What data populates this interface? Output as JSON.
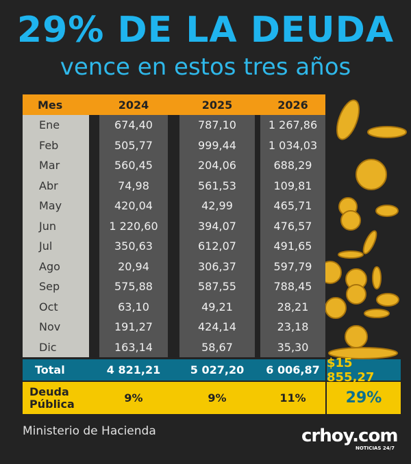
{
  "header": {
    "title": "29% DE LA DEUDA",
    "subtitle": "vence en estos tres años"
  },
  "table": {
    "columns": [
      "Mes",
      "2024",
      "2025",
      "2026"
    ],
    "rows": [
      [
        "Ene",
        "674,40",
        "787,10",
        "1 267,86"
      ],
      [
        "Feb",
        "505,77",
        "999,44",
        "1 034,03"
      ],
      [
        "Mar",
        "560,45",
        "204,06",
        "688,29"
      ],
      [
        "Abr",
        "74,98",
        "561,53",
        "109,81"
      ],
      [
        "May",
        "420,04",
        "42,99",
        "465,71"
      ],
      [
        "Jun",
        "1 220,60",
        "394,07",
        "476,57"
      ],
      [
        "Jul",
        "350,63",
        "612,07",
        "491,65"
      ],
      [
        "Ago",
        "20,94",
        "306,37",
        "597,79"
      ],
      [
        "Sep",
        "575,88",
        "587,55",
        "788,45"
      ],
      [
        "Oct",
        "63,10",
        "49,21",
        "28,21"
      ],
      [
        "Nov",
        "191,27",
        "424,14",
        "23,18"
      ],
      [
        "Dic",
        "163,14",
        "58,67",
        "35,30"
      ]
    ],
    "total": [
      "Total",
      "4 821,21",
      "5 027,20",
      "6 006,87"
    ],
    "grand_total": "$15 855,27",
    "debt_share": [
      "Deuda Pública",
      "9%",
      "9%",
      "11%"
    ],
    "debt_share_total": "29%"
  },
  "footer": {
    "source": "Ministerio de Hacienda",
    "logo": "crhoy.com",
    "logo_tagline": "NOTICIAS 24/7"
  }
}
